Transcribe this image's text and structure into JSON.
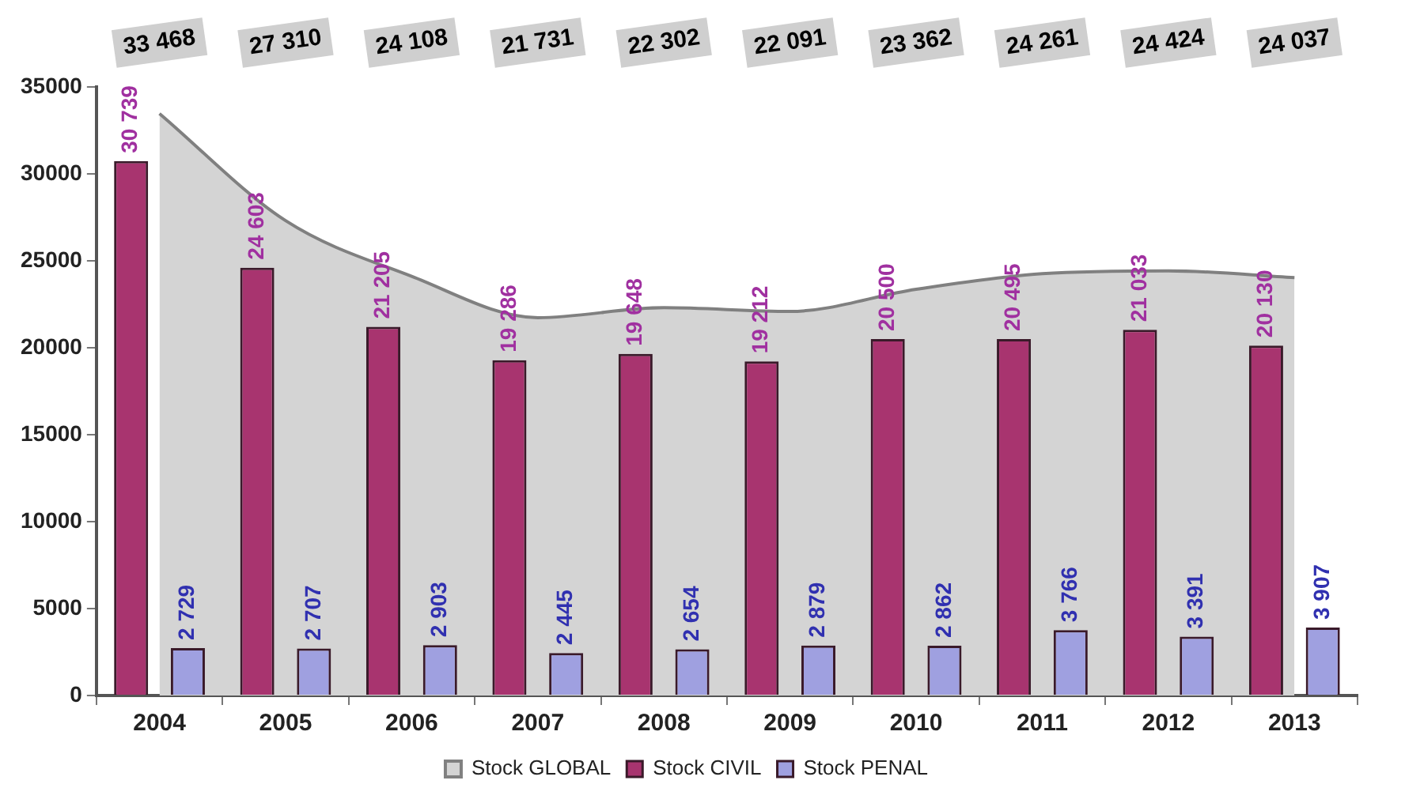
{
  "chart_data": {
    "type": "bar",
    "categories": [
      "2004",
      "2005",
      "2006",
      "2007",
      "2008",
      "2009",
      "2010",
      "2011",
      "2012",
      "2013"
    ],
    "series": [
      {
        "name": "Stock GLOBAL",
        "type": "area",
        "color": "#d4d4d4",
        "values": [
          33468,
          27310,
          24108,
          21731,
          22302,
          22091,
          23362,
          24261,
          24424,
          24037
        ],
        "value_labels": [
          "33 468",
          "27 310",
          "24 108",
          "21 731",
          "22 302",
          "22 091",
          "23 362",
          "24 261",
          "24 424",
          "24 037"
        ]
      },
      {
        "name": "Stock CIVIL",
        "color": "#a8346f",
        "values": [
          30739,
          24603,
          21205,
          19286,
          19648,
          19212,
          20500,
          20495,
          21033,
          20130
        ],
        "value_labels": [
          "30 739",
          "24 603",
          "21 205",
          "19 286",
          "19 648",
          "19 212",
          "20 500",
          "20 495",
          "21 033",
          "20 130"
        ]
      },
      {
        "name": "Stock PENAL",
        "color": "#9fa0e0",
        "values": [
          2729,
          2707,
          2903,
          2445,
          2654,
          2879,
          2862,
          3766,
          3391,
          3907
        ],
        "value_labels": [
          "2 729",
          "2 707",
          "2 903",
          "2 445",
          "2 654",
          "2 879",
          "2 862",
          "3 766",
          "3 391",
          "3 907"
        ]
      }
    ],
    "ylim": [
      0,
      35000
    ],
    "yticks": [
      0,
      5000,
      10000,
      15000,
      20000,
      25000,
      30000,
      35000
    ],
    "grid": false,
    "legend": "bottom"
  }
}
